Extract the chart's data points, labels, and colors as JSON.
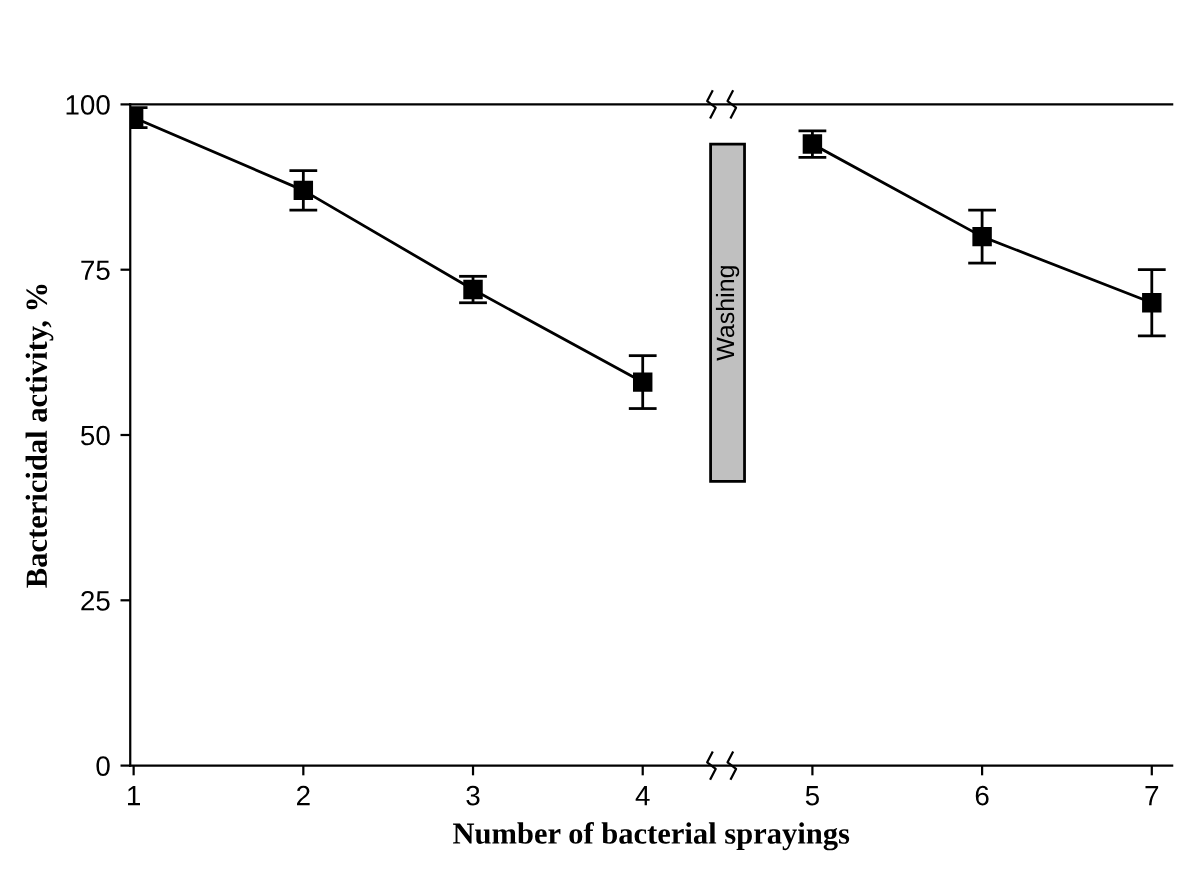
{
  "chart_data": {
    "type": "line",
    "xlabel": "Number of bacterial sprayings",
    "ylabel": "Bactericidal activity, %",
    "categories": [
      "1",
      "2",
      "3",
      "4",
      "5",
      "6",
      "7"
    ],
    "series": [
      {
        "color": "#000000",
        "values": [
          98,
          87,
          72,
          58,
          null,
          null,
          null
        ],
        "errors": [
          1.5,
          3,
          2,
          4,
          null,
          null,
          null
        ]
      },
      {
        "color": "#000000",
        "values": [
          null,
          null,
          null,
          null,
          94,
          80,
          70
        ],
        "errors": [
          null,
          null,
          null,
          null,
          2,
          4,
          5
        ]
      }
    ],
    "annotations": [
      "Washing"
    ],
    "ylim": [
      0,
      100
    ],
    "yticks": [
      0,
      25,
      50,
      75,
      100
    ],
    "grid": false,
    "legend": false,
    "marker": "square",
    "line_style": "solid"
  }
}
